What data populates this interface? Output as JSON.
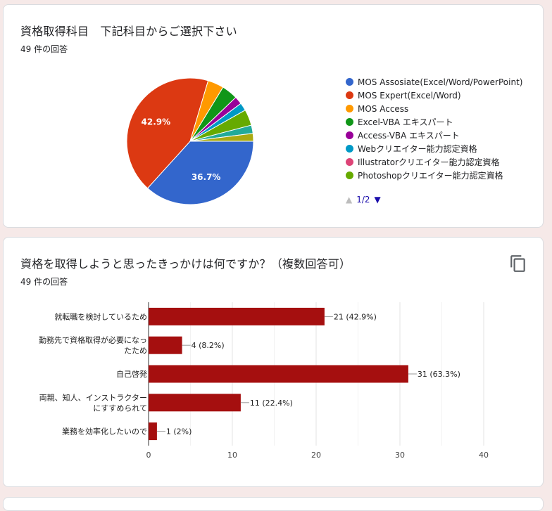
{
  "q1": {
    "title": "資格取得科目　下記科目からご選択下さい",
    "count": "49 件の回答",
    "pager": "1/2"
  },
  "q2": {
    "title": "資格を取得しようと思ったきっかけは何ですか？（複数回答可）",
    "count": "49 件の回答"
  },
  "chart_data": [
    {
      "type": "pie",
      "slices": [
        {
          "label": "MOS Assosiate(Excel/Word/PowerPoint)",
          "value": 36.7,
          "color": "#3366cc",
          "shown_label": "36.7%"
        },
        {
          "label": "MOS Expert(Excel/Word)",
          "value": 42.9,
          "color": "#dc3912",
          "shown_label": "42.9%"
        },
        {
          "label": "MOS Access",
          "value": 4.1,
          "color": "#ff9900",
          "shown_label": ""
        },
        {
          "label": "Excel-VBA エキスパート",
          "value": 4.1,
          "color": "#109618",
          "shown_label": ""
        },
        {
          "label": "Access-VBA エキスパート",
          "value": 2.0,
          "color": "#990099",
          "shown_label": ""
        },
        {
          "label": "Webクリエイター能力認定資格",
          "value": 2.0,
          "color": "#0099c6",
          "shown_label": ""
        },
        {
          "label": "Illustratorクリエイター能力認定資格",
          "value": 0,
          "color": "#dd4477",
          "shown_label": ""
        },
        {
          "label": "Photoshopクリエイター能力認定資格",
          "value": 4.1,
          "color": "#66aa00",
          "shown_label": ""
        },
        {
          "label": "",
          "value": 2.1,
          "color": "#22aa99",
          "shown_label": ""
        },
        {
          "label": "",
          "value": 2.0,
          "color": "#aaaa11",
          "shown_label": ""
        }
      ],
      "legend_position": "right"
    },
    {
      "type": "bar",
      "orientation": "horizontal",
      "categories": [
        [
          "就転職を検討しているため"
        ],
        [
          "勤務先で資格取得が必要になっ",
          "たため"
        ],
        [
          "自己啓発"
        ],
        [
          "両親、知人、インストラクター",
          "にすすめられて"
        ],
        [
          "業務を効率化したいので"
        ]
      ],
      "values": [
        21,
        4,
        31,
        11,
        1
      ],
      "value_labels": [
        "21 (42.9%)",
        "4 (8.2%)",
        "31 (63.3%)",
        "11 (22.4%)",
        "1 (2%)"
      ],
      "xlim": [
        0,
        40
      ],
      "xticks": [
        0,
        10,
        20,
        30,
        40
      ],
      "color": "#a50f0f",
      "grid": true
    }
  ]
}
